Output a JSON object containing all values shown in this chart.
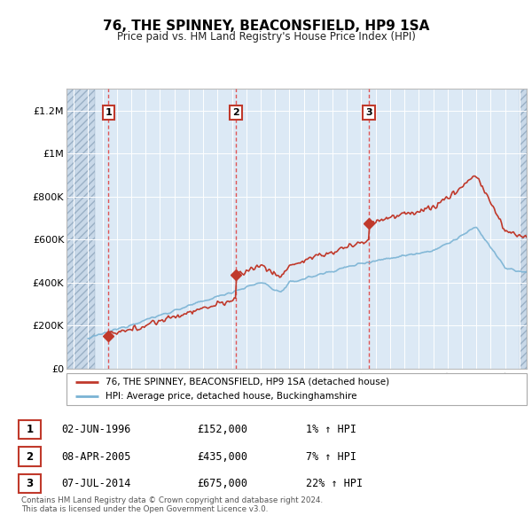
{
  "title": "76, THE SPINNEY, BEACONSFIELD, HP9 1SA",
  "subtitle": "Price paid vs. HM Land Registry's House Price Index (HPI)",
  "sale_dates": [
    1996.42,
    2005.27,
    2014.52
  ],
  "sale_prices": [
    152000,
    435000,
    675000
  ],
  "sale_labels": [
    "1",
    "2",
    "3"
  ],
  "hpi_color": "#7ab3d4",
  "price_color": "#c0392b",
  "vline_color": "#e05555",
  "ylim": [
    0,
    1300000
  ],
  "xlim": [
    1993.5,
    2025.5
  ],
  "yticks": [
    0,
    200000,
    400000,
    600000,
    800000,
    1000000,
    1200000
  ],
  "ytick_labels": [
    "£0",
    "£200K",
    "£400K",
    "£600K",
    "£800K",
    "£1M",
    "£1.2M"
  ],
  "xticks": [
    1994,
    1995,
    1996,
    1997,
    1998,
    1999,
    2000,
    2001,
    2002,
    2003,
    2004,
    2005,
    2006,
    2007,
    2008,
    2009,
    2010,
    2011,
    2012,
    2013,
    2014,
    2015,
    2016,
    2017,
    2018,
    2019,
    2020,
    2021,
    2022,
    2023,
    2024,
    2025
  ],
  "legend_price_label": "76, THE SPINNEY, BEACONSFIELD, HP9 1SA (detached house)",
  "legend_hpi_label": "HPI: Average price, detached house, Buckinghamshire",
  "table_rows": [
    [
      "1",
      "02-JUN-1996",
      "£152,000",
      "1% ↑ HPI"
    ],
    [
      "2",
      "08-APR-2005",
      "£435,000",
      "7% ↑ HPI"
    ],
    [
      "3",
      "07-JUL-2014",
      "£675,000",
      "22% ↑ HPI"
    ]
  ],
  "footer_text": "Contains HM Land Registry data © Crown copyright and database right 2024.\nThis data is licensed under the Open Government Licence v3.0.",
  "bg_color": "#dce9f5",
  "grid_color": "#ffffff",
  "label_box_color": "#ffffff",
  "label_box_edge": "#c0392b",
  "hatch_bg": "#c8d8e8"
}
